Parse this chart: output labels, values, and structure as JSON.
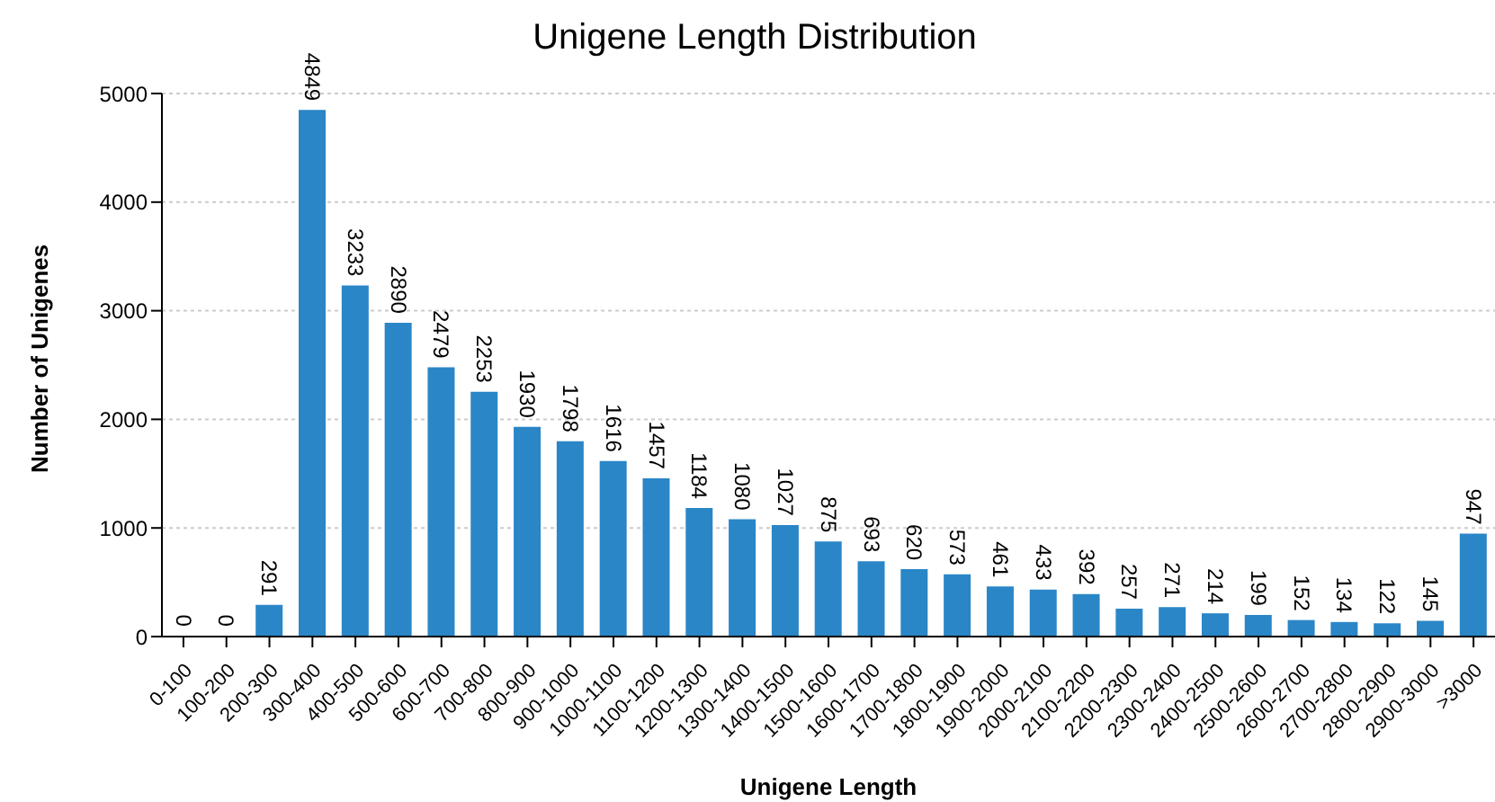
{
  "chart_data": {
    "type": "bar",
    "title": "Unigene Length Distribution",
    "xlabel": "Unigene Length",
    "ylabel": "Number of Unigenes",
    "categories": [
      "0-100",
      "100-200",
      "200-300",
      "300-400",
      "400-500",
      "500-600",
      "600-700",
      "700-800",
      "800-900",
      "900-1000",
      "1000-1100",
      "1100-1200",
      "1200-1300",
      "1300-1400",
      "1400-1500",
      "1500-1600",
      "1600-1700",
      "1700-1800",
      "1800-1900",
      "1900-2000",
      "2000-2100",
      "2100-2200",
      "2200-2300",
      "2300-2400",
      "2400-2500",
      "2500-2600",
      "2600-2700",
      "2700-2800",
      "2800-2900",
      "2900-3000",
      ">3000"
    ],
    "values": [
      0,
      0,
      291,
      4849,
      3233,
      2890,
      2479,
      2253,
      1930,
      1798,
      1616,
      1457,
      1184,
      1080,
      1027,
      875,
      693,
      620,
      573,
      461,
      433,
      392,
      257,
      271,
      214,
      199,
      152,
      134,
      122,
      145,
      947
    ],
    "color": "#2a86c7",
    "ylim": [
      0,
      5000
    ],
    "yticks": [
      0,
      1000,
      2000,
      3000,
      4000,
      5000
    ],
    "grid": "y",
    "data_labels": true
  }
}
